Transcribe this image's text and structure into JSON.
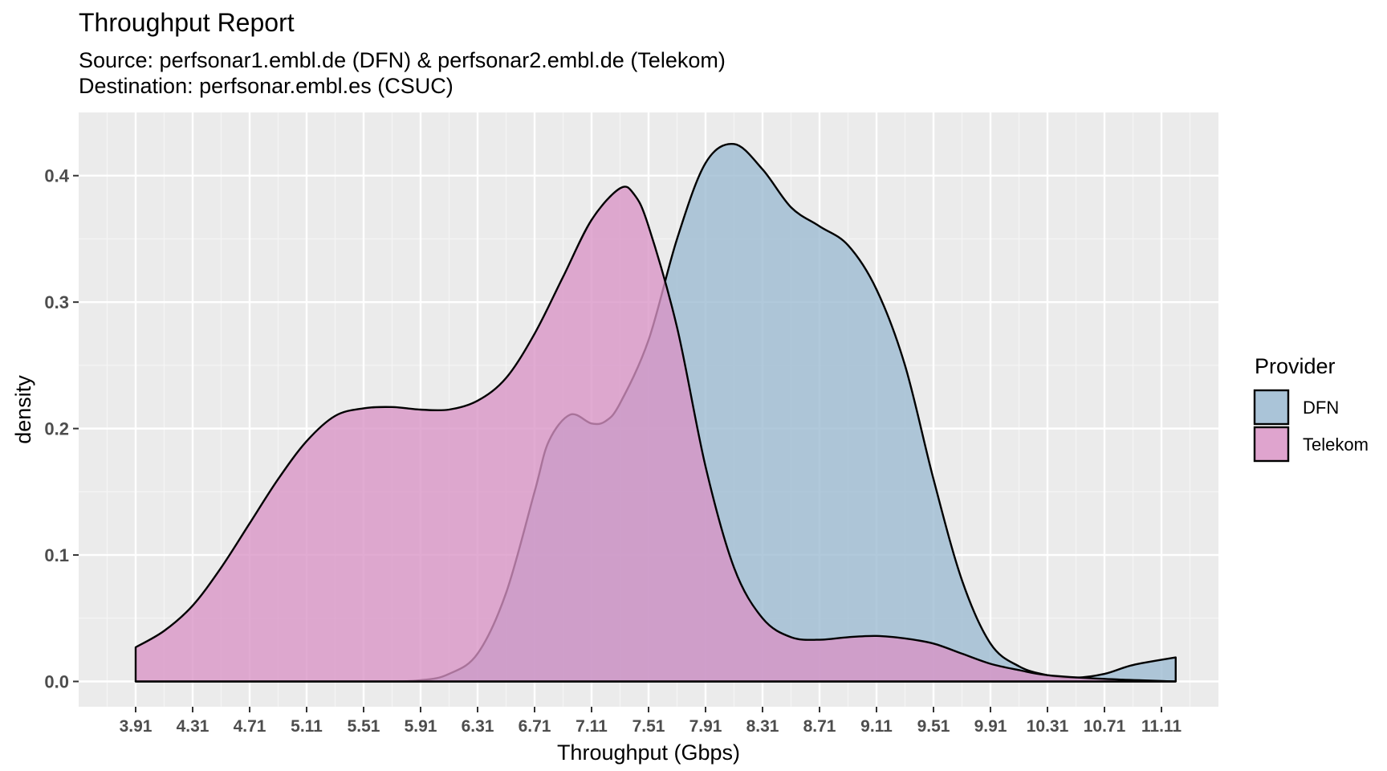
{
  "chart_data": {
    "type": "area",
    "subtype": "density",
    "title": "Throughput Report",
    "subtitle": [
      "Source: perfsonar1.embl.de (DFN) & perfsonar2.embl.de (Telekom)",
      "Destination: perfsonar.embl.es (CSUC)"
    ],
    "xlabel": "Throughput (Gbps)",
    "ylabel": "density",
    "xlim": [
      3.51,
      11.51
    ],
    "ylim": [
      -0.02,
      0.45
    ],
    "x_ticks": [
      "3.91",
      "4.31",
      "4.71",
      "5.11",
      "5.51",
      "5.91",
      "6.31",
      "6.71",
      "7.11",
      "7.51",
      "7.91",
      "8.31",
      "8.71",
      "9.11",
      "9.51",
      "9.91",
      "10.31",
      "10.71",
      "11.11"
    ],
    "y_ticks": [
      "0.0",
      "0.1",
      "0.2",
      "0.3",
      "0.4"
    ],
    "grid": true,
    "legend": {
      "title": "Provider",
      "position": "right"
    },
    "series": [
      {
        "name": "DFN",
        "color": "#9bbad1",
        "points": [
          [
            3.91,
            0.0
          ],
          [
            5.51,
            0.0
          ],
          [
            5.91,
            0.001
          ],
          [
            6.11,
            0.006
          ],
          [
            6.31,
            0.022
          ],
          [
            6.51,
            0.07
          ],
          [
            6.71,
            0.15
          ],
          [
            6.81,
            0.19
          ],
          [
            6.96,
            0.211
          ],
          [
            7.11,
            0.204
          ],
          [
            7.21,
            0.206
          ],
          [
            7.31,
            0.22
          ],
          [
            7.51,
            0.27
          ],
          [
            7.71,
            0.35
          ],
          [
            7.91,
            0.41
          ],
          [
            8.11,
            0.425
          ],
          [
            8.31,
            0.405
          ],
          [
            8.51,
            0.375
          ],
          [
            8.71,
            0.36
          ],
          [
            8.91,
            0.345
          ],
          [
            9.11,
            0.31
          ],
          [
            9.31,
            0.25
          ],
          [
            9.51,
            0.16
          ],
          [
            9.71,
            0.08
          ],
          [
            9.91,
            0.03
          ],
          [
            10.11,
            0.012
          ],
          [
            10.31,
            0.005
          ],
          [
            10.51,
            0.003
          ],
          [
            10.71,
            0.006
          ],
          [
            10.91,
            0.013
          ],
          [
            11.21,
            0.019
          ]
        ]
      },
      {
        "name": "Telekom",
        "color": "#d994c5",
        "points": [
          [
            3.91,
            0.027
          ],
          [
            4.11,
            0.04
          ],
          [
            4.31,
            0.06
          ],
          [
            4.51,
            0.09
          ],
          [
            4.71,
            0.125
          ],
          [
            4.91,
            0.16
          ],
          [
            5.11,
            0.19
          ],
          [
            5.31,
            0.21
          ],
          [
            5.51,
            0.216
          ],
          [
            5.71,
            0.217
          ],
          [
            5.91,
            0.215
          ],
          [
            6.11,
            0.215
          ],
          [
            6.31,
            0.222
          ],
          [
            6.51,
            0.24
          ],
          [
            6.71,
            0.275
          ],
          [
            6.91,
            0.32
          ],
          [
            7.11,
            0.365
          ],
          [
            7.31,
            0.39
          ],
          [
            7.41,
            0.385
          ],
          [
            7.51,
            0.36
          ],
          [
            7.71,
            0.28
          ],
          [
            7.91,
            0.17
          ],
          [
            8.11,
            0.09
          ],
          [
            8.31,
            0.05
          ],
          [
            8.51,
            0.035
          ],
          [
            8.71,
            0.033
          ],
          [
            8.91,
            0.035
          ],
          [
            9.11,
            0.036
          ],
          [
            9.31,
            0.034
          ],
          [
            9.51,
            0.03
          ],
          [
            9.71,
            0.022
          ],
          [
            9.91,
            0.014
          ],
          [
            10.11,
            0.009
          ],
          [
            10.31,
            0.005
          ],
          [
            10.71,
            0.002
          ],
          [
            11.21,
            0.0
          ]
        ]
      }
    ]
  }
}
